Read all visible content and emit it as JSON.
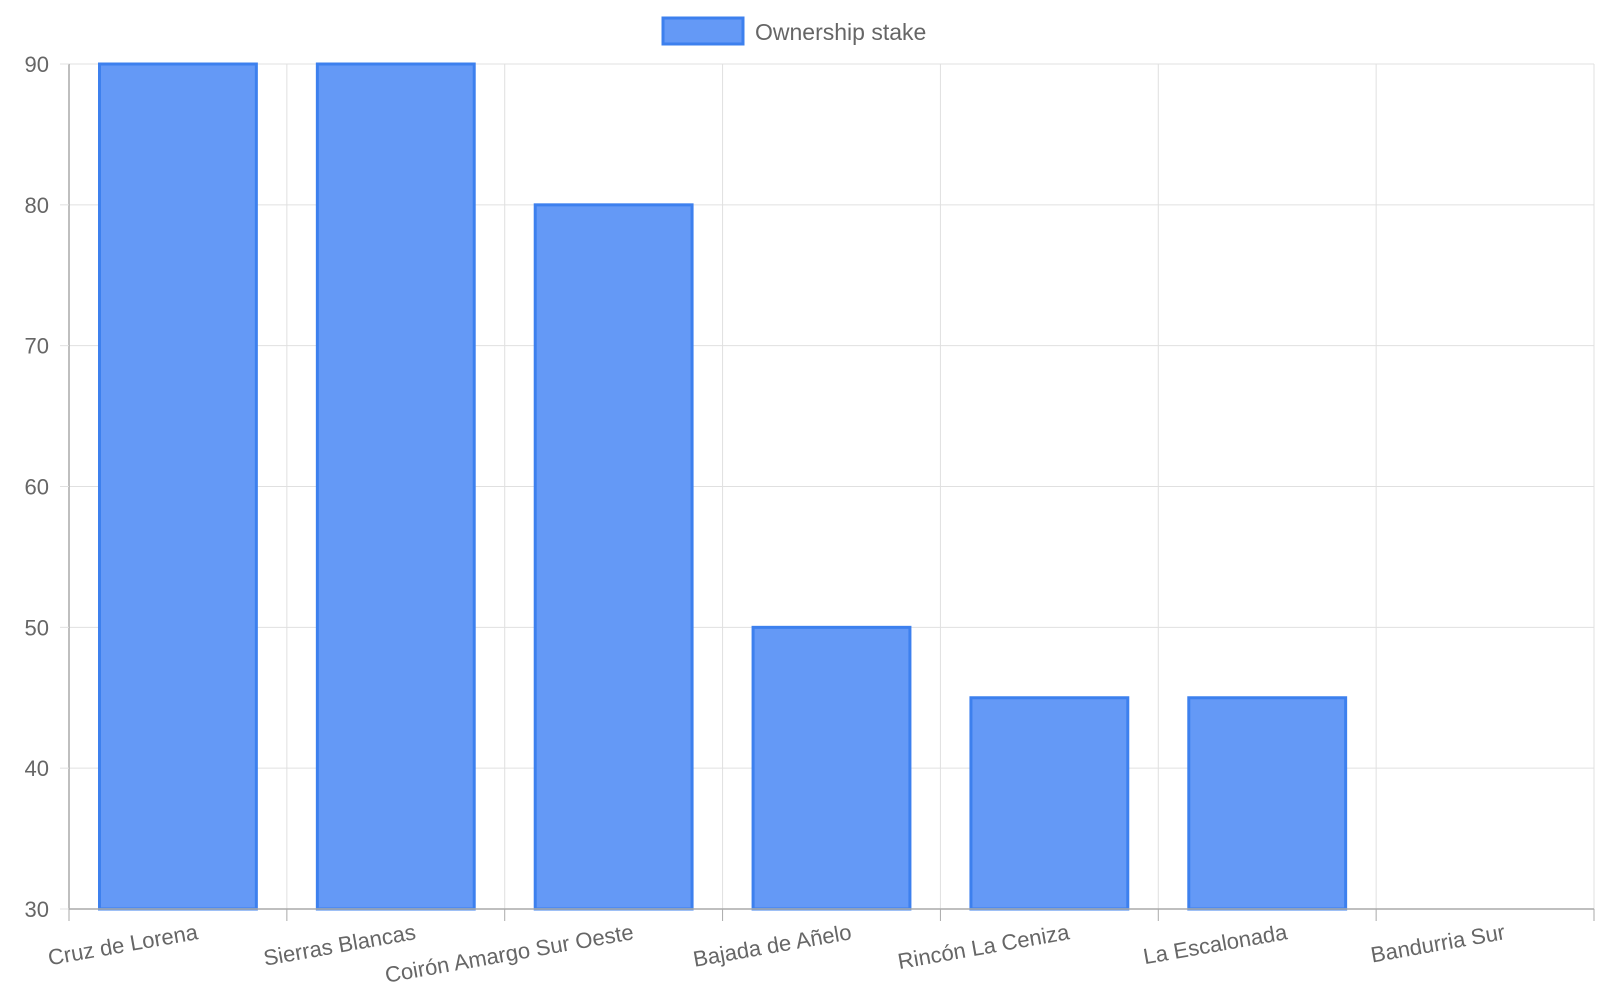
{
  "chart_data": {
    "type": "bar",
    "title": "",
    "xlabel": "",
    "ylabel": "",
    "categories": [
      "Cruz de Lorena",
      "Sierras Blancas",
      "Coirón Amargo Sur Oeste",
      "Bajada de Añelo",
      "Rincón La Ceniza",
      "La Escalonada",
      "Bandurria Sur"
    ],
    "series": [
      {
        "name": "Ownership stake",
        "values": [
          90,
          90,
          80,
          50,
          45,
          45,
          null
        ]
      }
    ],
    "ylim": [
      30,
      90
    ],
    "yticks": [
      30,
      40,
      50,
      60,
      70,
      80,
      90
    ],
    "ytick_labels": [
      "30",
      "40",
      "50",
      "60",
      "70",
      "80",
      "90"
    ],
    "grid": true,
    "legend": "top-center",
    "colors": {
      "bar_fill": "#6499f6",
      "bar_border": "#3d80ee",
      "grid": "#e0e0e0",
      "axis": "#aaaaaa",
      "text": "#666666"
    }
  }
}
